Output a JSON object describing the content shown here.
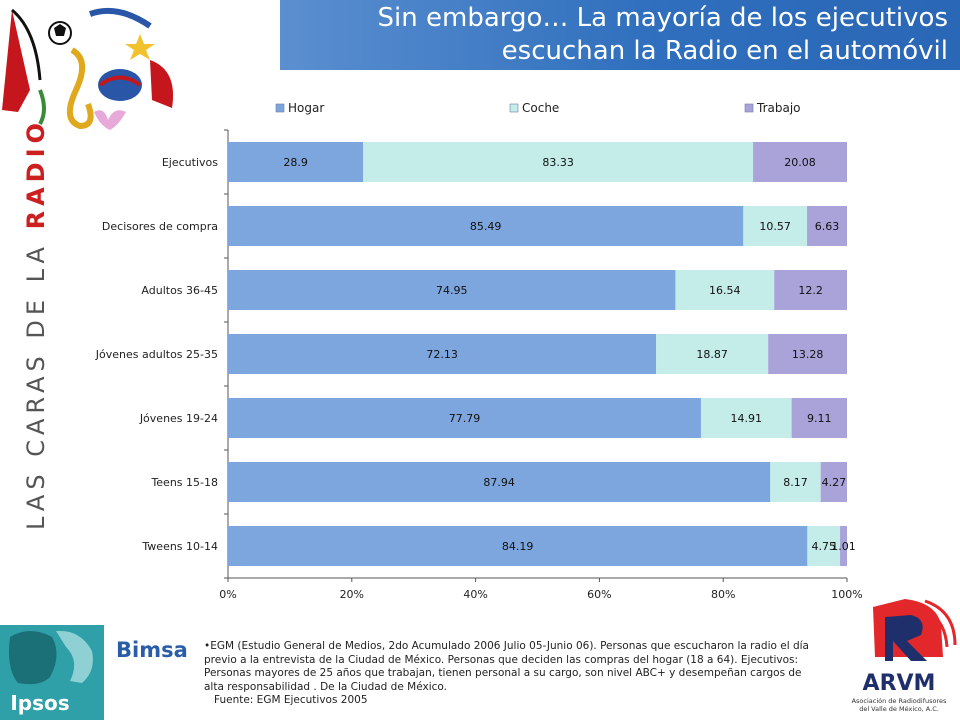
{
  "title": {
    "line1": "Sin embargo… La mayoría de los ejecutivos",
    "line2": "escuchan la Radio en el automóvil"
  },
  "side_title": {
    "prefix": "LAS CARAS DE LA ",
    "highlight": "RADIO"
  },
  "footnote": {
    "bullet": "•",
    "text": "EGM (Estudio General de Medios, 2do Acumulado 2006 Julio 05-Junio 06). Personas que escucharon la radio el día previo a la entrevista de la Ciudad de México. Personas que deciden las compras del hogar (18 a 64). Ejecutivos: Personas mayores de 25 años que trabajan, tienen personal a su cargo, son nivel ABC+ y desempeñan cargos de alta responsabilidad . De la Ciudad de México.",
    "source": "Fuente: EGM Ejecutivos 2005"
  },
  "logos": {
    "bimsa": "Bimsa",
    "ipsos": "Ipsos",
    "arvm": "ARVM",
    "arvm_tagline_1": "Asociación de Radiodifusores",
    "arvm_tagline_2": "del Valle de México, A.C."
  },
  "colors": {
    "banner": "#2f6fbd",
    "hogar": "#7ea6de",
    "coche": "#c4ece8",
    "trabajo": "#aaa3d9",
    "radio_red": "#cc1f1f"
  },
  "chart_data": {
    "type": "bar",
    "orientation": "horizontal",
    "stacked": "percent",
    "categories": [
      "Ejecutivos",
      "Decisores de compra",
      "Adultos 36-45",
      "Jóvenes adultos 25-35",
      "Jóvenes 19-24",
      "Teens 15-18",
      "Tweens 10-14"
    ],
    "series": [
      {
        "name": "Hogar",
        "values": [
          28.9,
          85.49,
          74.95,
          72.13,
          77.79,
          87.94,
          84.19
        ]
      },
      {
        "name": "Coche",
        "values": [
          83.33,
          10.57,
          16.54,
          18.87,
          14.91,
          8.17,
          4.75
        ]
      },
      {
        "name": "Trabajo",
        "values": [
          20.08,
          6.63,
          12.2,
          13.28,
          9.11,
          4.27,
          1.01
        ]
      }
    ],
    "xticks": [
      "0%",
      "20%",
      "40%",
      "60%",
      "80%",
      "100%"
    ],
    "xlim": [
      0,
      100
    ],
    "legend": "top",
    "grid": false
  }
}
